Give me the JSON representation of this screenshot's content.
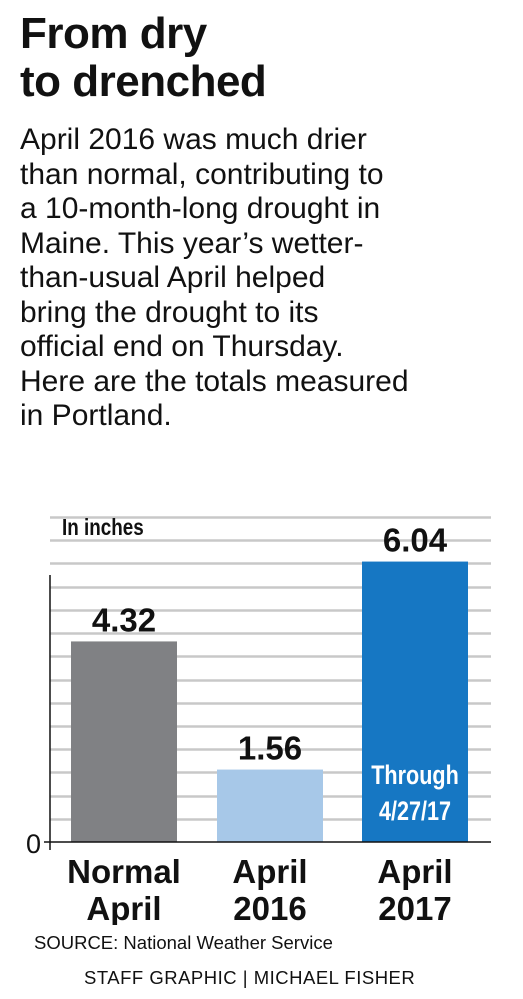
{
  "headline": {
    "title_lines": [
      "From dry",
      "to drenched"
    ],
    "description_lines": [
      "April 2016 was much drier",
      "than normal, contributing to",
      "a 10-month-long drought in",
      "Maine. This year’s wetter-",
      "than-usual April helped",
      "bring the drought to its",
      "official end on Thursday.",
      "Here are the totals measured",
      "in Portland."
    ]
  },
  "chart_data": {
    "type": "bar",
    "unit_label": "In inches",
    "categories": [
      {
        "lines": [
          "Normal",
          "April"
        ]
      },
      {
        "lines": [
          "April",
          "2016"
        ]
      },
      {
        "lines": [
          "April",
          "2017"
        ]
      }
    ],
    "values": [
      4.32,
      1.56,
      6.04
    ],
    "value_labels": [
      "4.32",
      "1.56",
      "6.04"
    ],
    "colors": [
      "#808184",
      "#a7c8e8",
      "#1677c3"
    ],
    "bar_annotations": [
      null,
      null,
      [
        "Through",
        "4/27/17"
      ]
    ],
    "ylim": [
      0,
      7
    ],
    "y_tick_labels": [
      {
        "value": 0,
        "label": "0"
      }
    ],
    "gridlines": true,
    "grid_color": "#c8c8c8"
  },
  "footer": {
    "source": "SOURCE: National Weather Service",
    "credit": "STAFF GRAPHIC | MICHAEL FISHER"
  }
}
